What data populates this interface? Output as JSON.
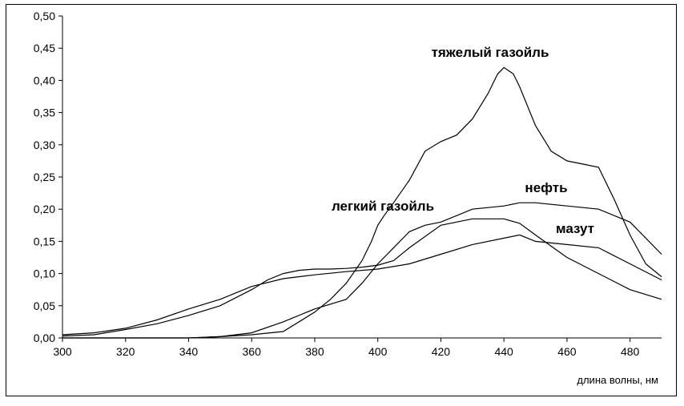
{
  "chart_data": {
    "type": "line",
    "title": "",
    "xlabel": "длина волны, нм",
    "ylabel": "",
    "xlim": [
      300,
      490
    ],
    "ylim": [
      0,
      0.5
    ],
    "x_ticks": [
      "300",
      "320",
      "340",
      "360",
      "380",
      "400",
      "420",
      "440",
      "460",
      "480"
    ],
    "y_ticks": [
      "0,00",
      "0,05",
      "0,10",
      "0,15",
      "0,20",
      "0,25",
      "0,30",
      "0,35",
      "0,40",
      "0,45",
      "0,50"
    ],
    "grid": false,
    "legend": "none",
    "line_color": "#000000",
    "series": [
      {
        "name": "тяжелый газойль",
        "x": [
          300,
          320,
          340,
          350,
          360,
          370,
          380,
          385,
          390,
          395,
          398,
          400,
          402,
          405,
          410,
          415,
          420,
          425,
          430,
          435,
          438,
          440,
          443,
          445,
          450,
          455,
          460,
          465,
          470,
          475,
          480,
          485,
          490
        ],
        "y": [
          0.0,
          0.0,
          0.0,
          0.002,
          0.005,
          0.01,
          0.04,
          0.06,
          0.085,
          0.12,
          0.15,
          0.175,
          0.19,
          0.21,
          0.245,
          0.29,
          0.305,
          0.315,
          0.34,
          0.38,
          0.41,
          0.42,
          0.41,
          0.39,
          0.33,
          0.29,
          0.275,
          0.27,
          0.265,
          0.215,
          0.16,
          0.115,
          0.095
        ]
      },
      {
        "name": "легкий газойль",
        "x": [
          300,
          310,
          320,
          330,
          340,
          350,
          360,
          365,
          370,
          375,
          380,
          385,
          390,
          395,
          400,
          405,
          410,
          420,
          430,
          440,
          445,
          450,
          460,
          470,
          480,
          490
        ],
        "y": [
          0.003,
          0.005,
          0.013,
          0.022,
          0.035,
          0.05,
          0.075,
          0.09,
          0.1,
          0.105,
          0.107,
          0.107,
          0.108,
          0.11,
          0.113,
          0.12,
          0.14,
          0.175,
          0.185,
          0.185,
          0.178,
          0.16,
          0.125,
          0.1,
          0.075,
          0.06
        ]
      },
      {
        "name": "нефть",
        "x": [
          300,
          320,
          340,
          350,
          360,
          370,
          380,
          390,
          395,
          400,
          405,
          410,
          415,
          420,
          430,
          440,
          445,
          450,
          460,
          470,
          480,
          490
        ],
        "y": [
          0.0,
          0.0,
          0.0,
          0.002,
          0.008,
          0.025,
          0.045,
          0.06,
          0.085,
          0.115,
          0.14,
          0.165,
          0.175,
          0.18,
          0.2,
          0.205,
          0.21,
          0.21,
          0.205,
          0.2,
          0.18,
          0.13
        ]
      },
      {
        "name": "мазут",
        "x": [
          300,
          310,
          320,
          330,
          340,
          350,
          360,
          370,
          380,
          390,
          400,
          410,
          420,
          430,
          440,
          445,
          450,
          460,
          470,
          480,
          490
        ],
        "y": [
          0.005,
          0.008,
          0.015,
          0.028,
          0.045,
          0.06,
          0.08,
          0.092,
          0.098,
          0.103,
          0.107,
          0.115,
          0.13,
          0.145,
          0.155,
          0.16,
          0.15,
          0.145,
          0.14,
          0.115,
          0.09
        ]
      }
    ],
    "annotations": [
      {
        "text": "тяжелый газойль",
        "series": "тяжелый газойль"
      },
      {
        "text": "легкий газойль",
        "series": "легкий газойль"
      },
      {
        "text": "нефть",
        "series": "нефть"
      },
      {
        "text": "мазут",
        "series": "мазут"
      }
    ]
  }
}
